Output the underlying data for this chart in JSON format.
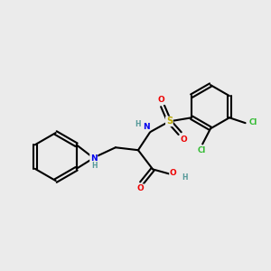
{
  "background_color": "#ebebeb",
  "atom_colors": {
    "C": "#000000",
    "N": "#0000ee",
    "O": "#ee0000",
    "S": "#bbaa00",
    "Cl": "#33bb33",
    "H": "#559999"
  },
  "bond_color": "#000000",
  "bond_width": 1.5,
  "figsize": [
    3.0,
    3.0
  ],
  "dpi": 100
}
